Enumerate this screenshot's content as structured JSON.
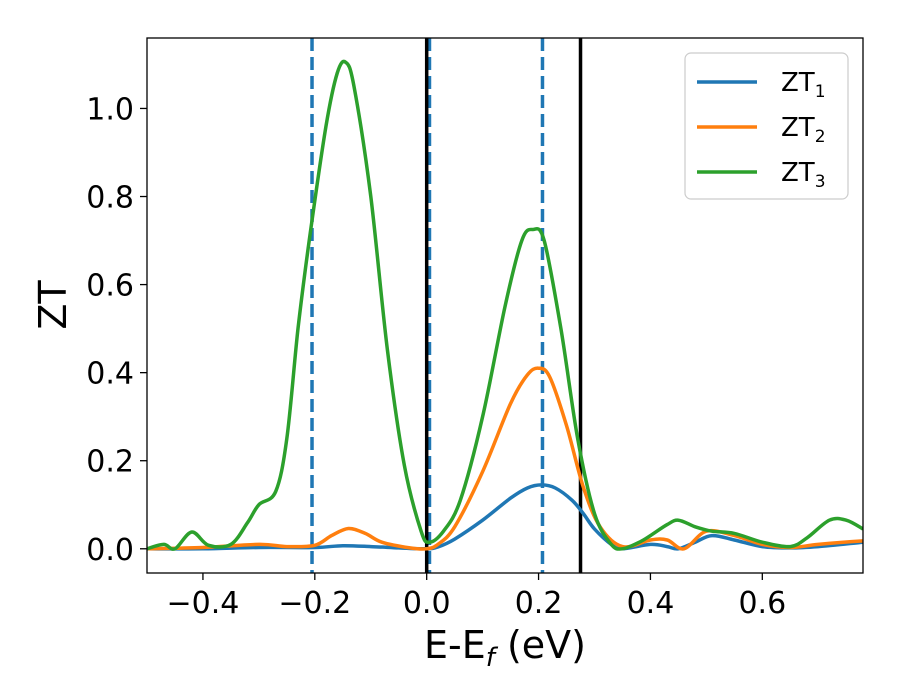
{
  "chart_data": {
    "type": "line",
    "xlabel": {
      "main": "E-E",
      "sub": "f",
      "suffix": " (eV)"
    },
    "ylabel": "ZT",
    "xlim": [
      -0.5,
      0.78
    ],
    "ylim": [
      -0.055,
      1.16
    ],
    "x_ticks": [
      -0.4,
      -0.2,
      0.0,
      0.2,
      0.4,
      0.6
    ],
    "x_tick_labels": [
      "−0.4",
      "−0.2",
      "0.0",
      "0.2",
      "0.4",
      "0.6"
    ],
    "y_ticks": [
      0.0,
      0.2,
      0.4,
      0.6,
      0.8,
      1.0
    ],
    "y_tick_labels": [
      "0.0",
      "0.2",
      "0.4",
      "0.6",
      "0.8",
      "1.0"
    ],
    "grid": false,
    "legend_position": "top-right",
    "vertical_lines": [
      {
        "x": -0.205,
        "style": "dashed",
        "color": "#1f77b4"
      },
      {
        "x": 0.005,
        "style": "dashed",
        "color": "#1f77b4"
      },
      {
        "x": 0.207,
        "style": "dashed",
        "color": "#1f77b4"
      },
      {
        "x": 0.0,
        "style": "solid",
        "color": "#000000"
      },
      {
        "x": 0.275,
        "style": "solid",
        "color": "#000000"
      }
    ],
    "series": [
      {
        "name": "ZT",
        "subscript": "1",
        "color": "#1f77b4",
        "points": [
          [
            -0.5,
            0.0
          ],
          [
            -0.4,
            0.0
          ],
          [
            -0.3,
            0.003
          ],
          [
            -0.2,
            0.003
          ],
          [
            -0.15,
            0.007
          ],
          [
            -0.1,
            0.005
          ],
          [
            -0.05,
            0.002
          ],
          [
            0.0,
            0.0
          ],
          [
            0.02,
            0.004
          ],
          [
            0.05,
            0.022
          ],
          [
            0.1,
            0.065
          ],
          [
            0.15,
            0.115
          ],
          [
            0.18,
            0.138
          ],
          [
            0.205,
            0.145
          ],
          [
            0.23,
            0.138
          ],
          [
            0.26,
            0.11
          ],
          [
            0.28,
            0.08
          ],
          [
            0.3,
            0.045
          ],
          [
            0.33,
            0.01
          ],
          [
            0.35,
            0.0
          ],
          [
            0.4,
            0.01
          ],
          [
            0.43,
            0.005
          ],
          [
            0.45,
            0.0
          ],
          [
            0.48,
            0.015
          ],
          [
            0.51,
            0.03
          ],
          [
            0.55,
            0.02
          ],
          [
            0.6,
            0.005
          ],
          [
            0.65,
            0.002
          ],
          [
            0.7,
            0.005
          ],
          [
            0.78,
            0.015
          ]
        ]
      },
      {
        "name": "ZT",
        "subscript": "2",
        "color": "#ff7f0e",
        "points": [
          [
            -0.5,
            0.0
          ],
          [
            -0.4,
            0.003
          ],
          [
            -0.3,
            0.01
          ],
          [
            -0.25,
            0.005
          ],
          [
            -0.2,
            0.008
          ],
          [
            -0.17,
            0.03
          ],
          [
            -0.14,
            0.046
          ],
          [
            -0.11,
            0.035
          ],
          [
            -0.08,
            0.015
          ],
          [
            -0.03,
            0.002
          ],
          [
            0.0,
            0.0
          ],
          [
            0.02,
            0.01
          ],
          [
            0.05,
            0.05
          ],
          [
            0.1,
            0.175
          ],
          [
            0.15,
            0.33
          ],
          [
            0.18,
            0.395
          ],
          [
            0.2,
            0.41
          ],
          [
            0.22,
            0.39
          ],
          [
            0.25,
            0.28
          ],
          [
            0.28,
            0.14
          ],
          [
            0.31,
            0.05
          ],
          [
            0.35,
            0.005
          ],
          [
            0.4,
            0.02
          ],
          [
            0.43,
            0.02
          ],
          [
            0.46,
            0.0
          ],
          [
            0.5,
            0.04
          ],
          [
            0.55,
            0.03
          ],
          [
            0.6,
            0.01
          ],
          [
            0.65,
            0.003
          ],
          [
            0.7,
            0.01
          ],
          [
            0.78,
            0.018
          ]
        ]
      },
      {
        "name": "ZT",
        "subscript": "3",
        "color": "#2ca02c",
        "points": [
          [
            -0.5,
            0.0
          ],
          [
            -0.47,
            0.01
          ],
          [
            -0.45,
            0.0
          ],
          [
            -0.42,
            0.038
          ],
          [
            -0.39,
            0.008
          ],
          [
            -0.35,
            0.01
          ],
          [
            -0.32,
            0.06
          ],
          [
            -0.3,
            0.1
          ],
          [
            -0.27,
            0.13
          ],
          [
            -0.25,
            0.25
          ],
          [
            -0.23,
            0.5
          ],
          [
            -0.21,
            0.7
          ],
          [
            -0.18,
            0.96
          ],
          [
            -0.16,
            1.08
          ],
          [
            -0.145,
            1.105
          ],
          [
            -0.13,
            1.05
          ],
          [
            -0.1,
            0.8
          ],
          [
            -0.07,
            0.45
          ],
          [
            -0.04,
            0.19
          ],
          [
            -0.01,
            0.04
          ],
          [
            0.005,
            0.015
          ],
          [
            0.03,
            0.04
          ],
          [
            0.06,
            0.11
          ],
          [
            0.1,
            0.3
          ],
          [
            0.14,
            0.55
          ],
          [
            0.17,
            0.7
          ],
          [
            0.19,
            0.725
          ],
          [
            0.21,
            0.7
          ],
          [
            0.24,
            0.5
          ],
          [
            0.27,
            0.25
          ],
          [
            0.3,
            0.08
          ],
          [
            0.33,
            0.01
          ],
          [
            0.35,
            0.0
          ],
          [
            0.38,
            0.015
          ],
          [
            0.4,
            0.03
          ],
          [
            0.43,
            0.055
          ],
          [
            0.45,
            0.065
          ],
          [
            0.48,
            0.05
          ],
          [
            0.51,
            0.04
          ],
          [
            0.55,
            0.035
          ],
          [
            0.6,
            0.015
          ],
          [
            0.65,
            0.005
          ],
          [
            0.68,
            0.025
          ],
          [
            0.72,
            0.065
          ],
          [
            0.75,
            0.065
          ],
          [
            0.78,
            0.045
          ]
        ]
      }
    ]
  }
}
